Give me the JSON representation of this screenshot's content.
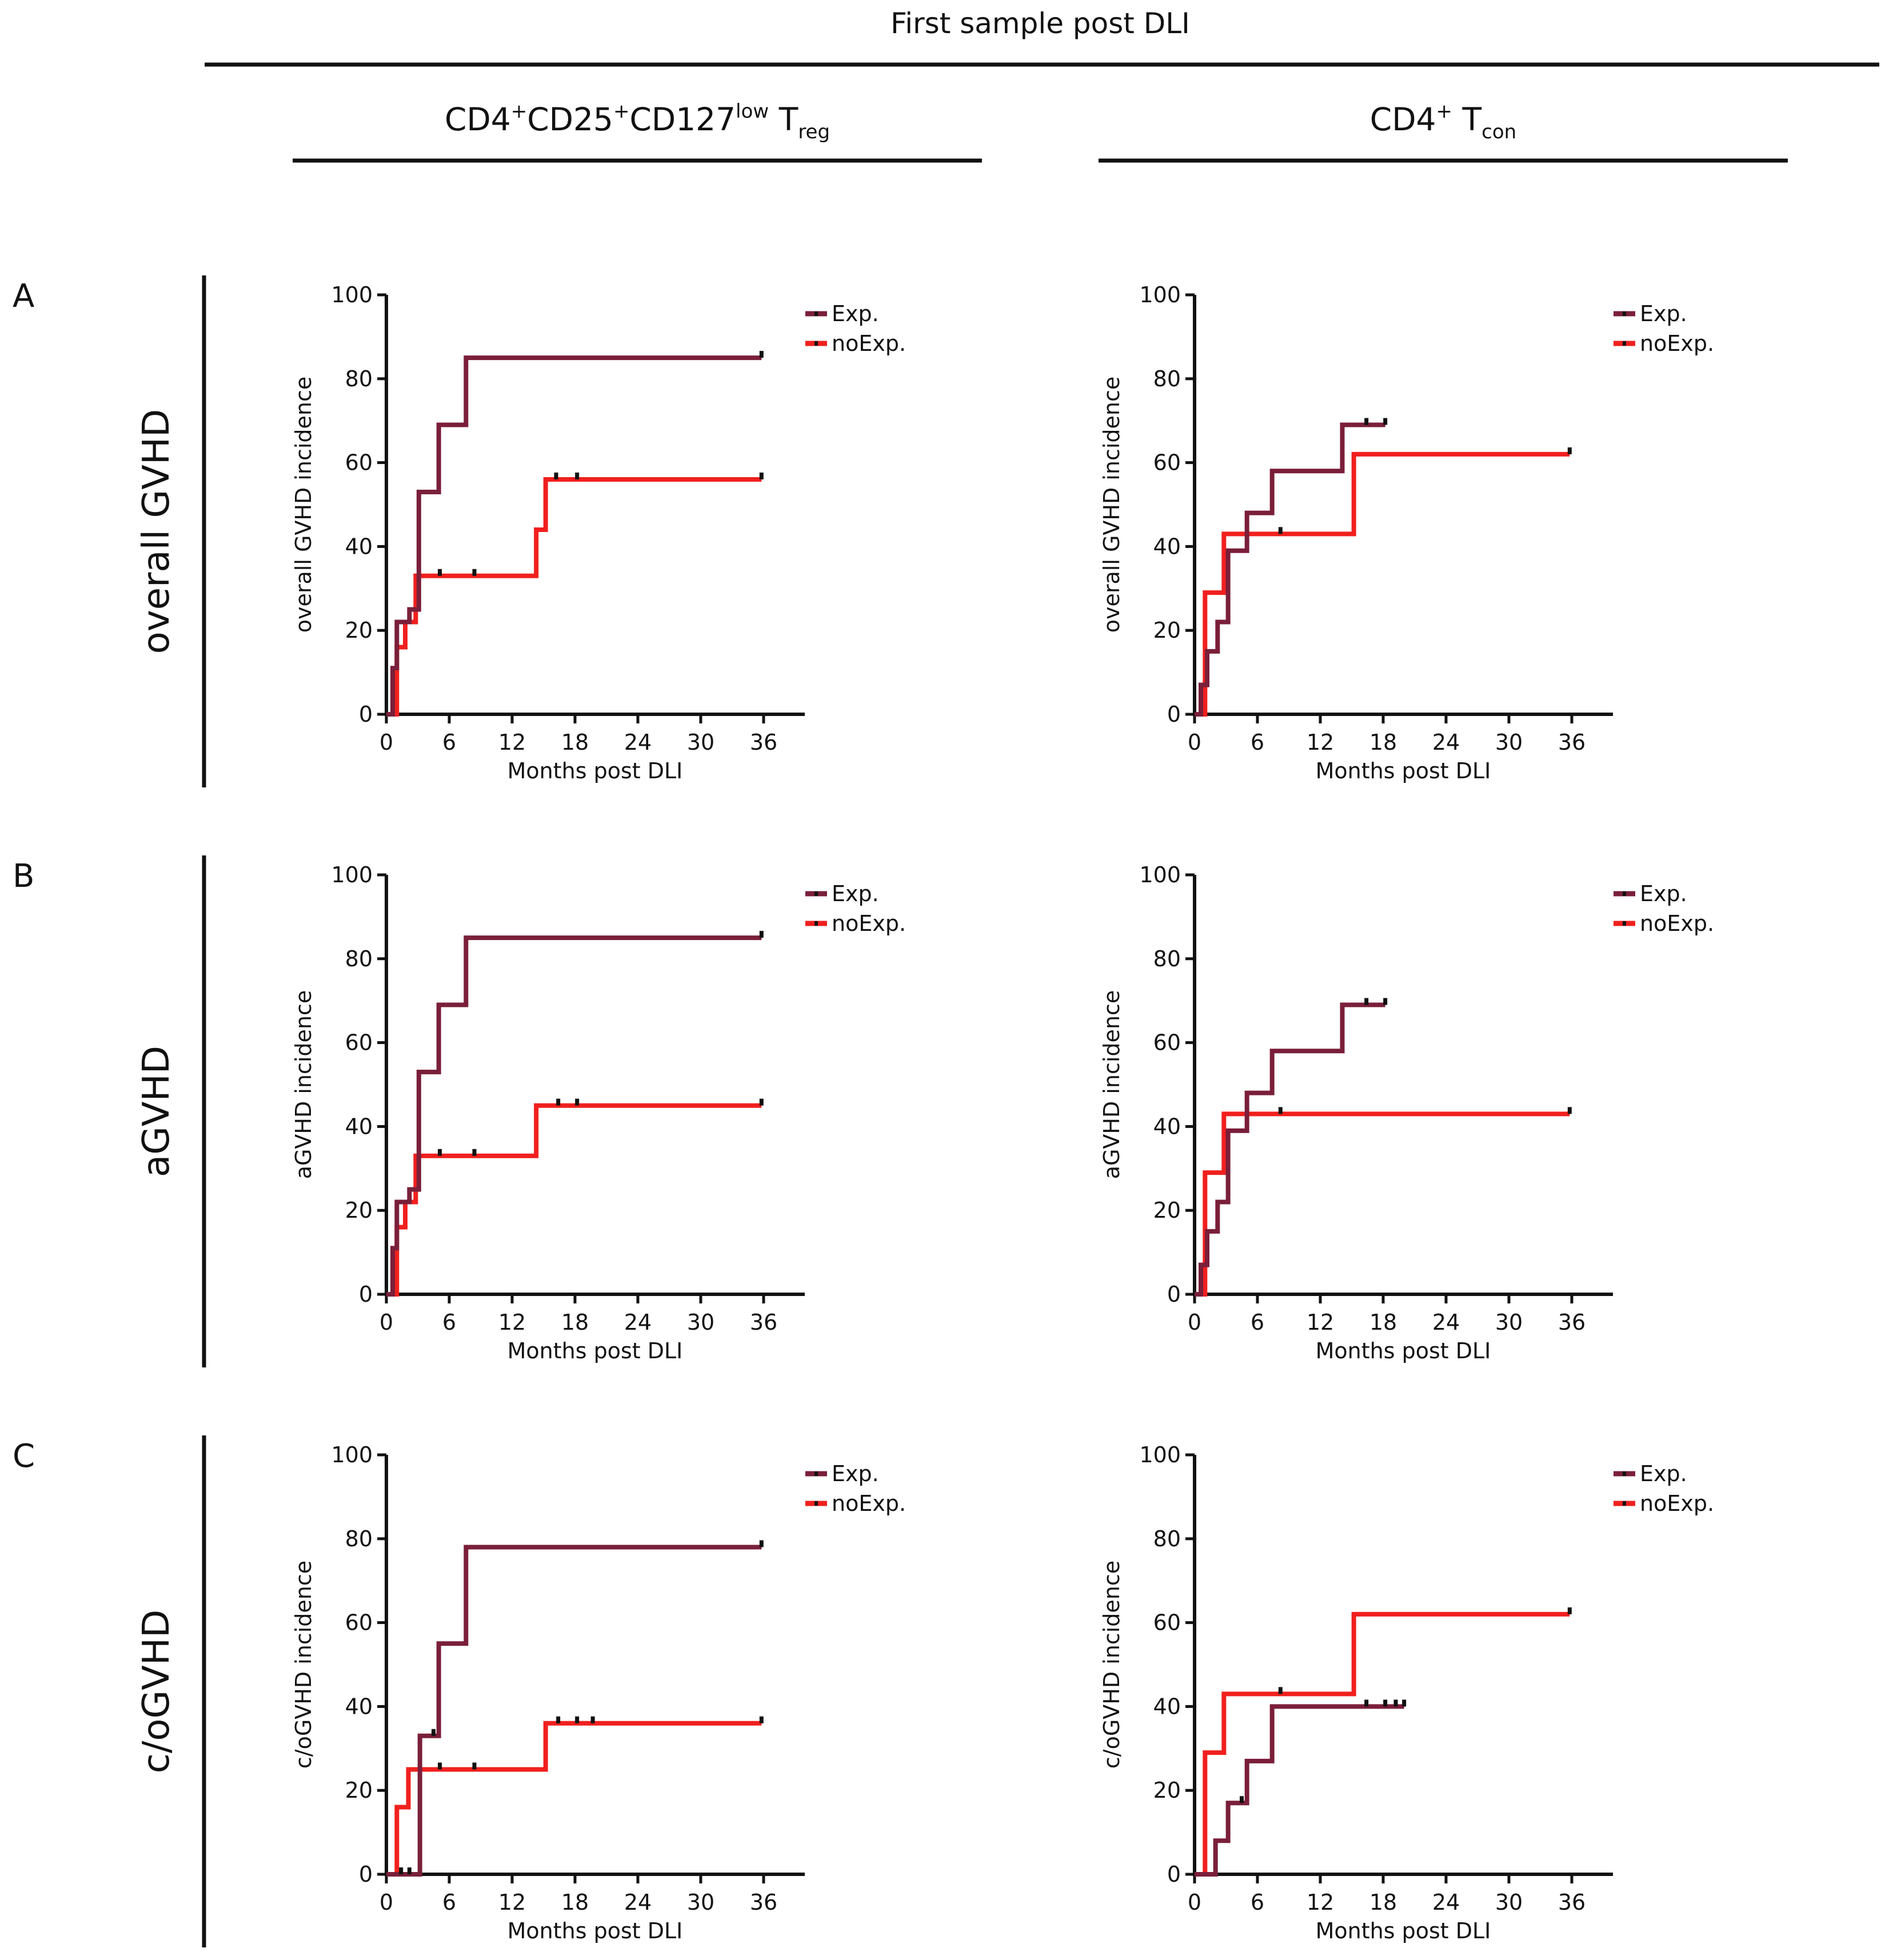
{
  "figure": {
    "header": "First sample post DLI",
    "columns": [
      {
        "main": "CD4",
        "parts": [
          {
            "t": "+",
            "k": "sup"
          },
          {
            "t": "CD25",
            "k": "n"
          },
          {
            "t": "+",
            "k": "sup"
          },
          {
            "t": "CD127",
            "k": "n"
          },
          {
            "t": "low",
            "k": "sup"
          },
          {
            "t": " T",
            "k": "n"
          },
          {
            "t": "reg",
            "k": "sub"
          }
        ]
      },
      {
        "main": "CD4",
        "parts": [
          {
            "t": "+",
            "k": "sup"
          },
          {
            "t": " T",
            "k": "n"
          },
          {
            "t": "con",
            "k": "sub"
          }
        ]
      }
    ],
    "rows": [
      {
        "letter": "A",
        "label": "overall GVHD"
      },
      {
        "letter": "B",
        "label": "aGVHD"
      },
      {
        "letter": "C",
        "label": "c/oGVHD"
      }
    ]
  },
  "colors": {
    "exp": "#7a1f3a",
    "noexp": "#f0201e",
    "axis": "#111111"
  },
  "chart_data": [
    {
      "type": "line",
      "step": true,
      "row": 0,
      "col": 0,
      "xlabel": "Months post DLI",
      "ylabel": "overall GVHD incidence",
      "xlim": [
        0,
        36
      ],
      "ylim": [
        0,
        100
      ],
      "xticks": [
        0,
        6,
        12,
        18,
        24,
        30,
        36
      ],
      "yticks": [
        0,
        20,
        40,
        60,
        80,
        100
      ],
      "legend": "top-right",
      "series": [
        {
          "name": "Exp.",
          "color": "#7a1f3a",
          "x": [
            0,
            0.6,
            1.0,
            2.2,
            3.1,
            5.0,
            7.6,
            35.8
          ],
          "y": [
            0,
            11,
            22,
            25,
            53,
            69,
            85,
            85
          ],
          "censored": [
            [
              35.8,
              85
            ]
          ]
        },
        {
          "name": "noExp.",
          "color": "#f0201e",
          "x": [
            0,
            1.0,
            1.8,
            2.8,
            14.3,
            15.2,
            35.8
          ],
          "y": [
            0,
            16,
            22,
            33,
            44,
            56,
            56
          ],
          "censored": [
            [
              5.1,
              33
            ],
            [
              8.4,
              33
            ],
            [
              16.2,
              56
            ],
            [
              18.2,
              56
            ],
            [
              35.8,
              56
            ]
          ]
        }
      ]
    },
    {
      "type": "line",
      "step": true,
      "row": 0,
      "col": 1,
      "xlabel": "Months post DLI",
      "ylabel": "overall GVHD incidence",
      "xlim": [
        0,
        36
      ],
      "ylim": [
        0,
        100
      ],
      "xticks": [
        0,
        6,
        12,
        18,
        24,
        30,
        36
      ],
      "yticks": [
        0,
        20,
        40,
        60,
        80,
        100
      ],
      "legend": "top-right",
      "series": [
        {
          "name": "Exp.",
          "color": "#7a1f3a",
          "x": [
            0,
            0.6,
            1.2,
            2.2,
            3.2,
            5.0,
            7.4,
            14.1,
            18.2
          ],
          "y": [
            0,
            7,
            15,
            22,
            39,
            48,
            58,
            69,
            69
          ],
          "censored": [
            [
              16.4,
              69
            ],
            [
              18.2,
              69
            ]
          ]
        },
        {
          "name": "noExp.",
          "color": "#f0201e",
          "x": [
            0,
            1.0,
            2.8,
            15.2,
            35.8
          ],
          "y": [
            0,
            29,
            43,
            62,
            62
          ],
          "censored": [
            [
              8.2,
              43
            ],
            [
              35.8,
              62
            ]
          ]
        }
      ]
    },
    {
      "type": "line",
      "step": true,
      "row": 1,
      "col": 0,
      "xlabel": "Months post DLI",
      "ylabel": "aGVHD incidence",
      "xlim": [
        0,
        36
      ],
      "ylim": [
        0,
        100
      ],
      "xticks": [
        0,
        6,
        12,
        18,
        24,
        30,
        36
      ],
      "yticks": [
        0,
        20,
        40,
        60,
        80,
        100
      ],
      "legend": "top-right",
      "series": [
        {
          "name": "Exp.",
          "color": "#7a1f3a",
          "x": [
            0,
            0.6,
            1.0,
            2.2,
            3.1,
            5.0,
            7.6,
            35.8
          ],
          "y": [
            0,
            11,
            22,
            25,
            53,
            69,
            85,
            85
          ],
          "censored": [
            [
              35.8,
              85
            ]
          ]
        },
        {
          "name": "noExp.",
          "color": "#f0201e",
          "x": [
            0,
            1.0,
            1.8,
            2.8,
            14.3,
            35.8
          ],
          "y": [
            0,
            16,
            22,
            33,
            45,
            45
          ],
          "censored": [
            [
              5.1,
              33
            ],
            [
              8.4,
              33
            ],
            [
              16.4,
              45
            ],
            [
              18.2,
              45
            ],
            [
              35.8,
              45
            ]
          ]
        }
      ]
    },
    {
      "type": "line",
      "step": true,
      "row": 1,
      "col": 1,
      "xlabel": "Months post DLI",
      "ylabel": "aGVHD incidence",
      "xlim": [
        0,
        36
      ],
      "ylim": [
        0,
        100
      ],
      "xticks": [
        0,
        6,
        12,
        18,
        24,
        30,
        36
      ],
      "yticks": [
        0,
        20,
        40,
        60,
        80,
        100
      ],
      "legend": "top-right",
      "series": [
        {
          "name": "Exp.",
          "color": "#7a1f3a",
          "x": [
            0,
            0.6,
            1.2,
            2.2,
            3.2,
            5.0,
            7.4,
            14.1,
            18.2
          ],
          "y": [
            0,
            7,
            15,
            22,
            39,
            48,
            58,
            69,
            69
          ],
          "censored": [
            [
              16.4,
              69
            ],
            [
              18.2,
              69
            ]
          ]
        },
        {
          "name": "noExp.",
          "color": "#f0201e",
          "x": [
            0,
            1.0,
            2.8,
            35.8
          ],
          "y": [
            0,
            29,
            43,
            43
          ],
          "censored": [
            [
              8.2,
              43
            ],
            [
              35.8,
              43
            ]
          ]
        }
      ]
    },
    {
      "type": "line",
      "step": true,
      "row": 2,
      "col": 0,
      "xlabel": "Months post DLI",
      "ylabel": "c/oGVHD incidence",
      "xlim": [
        0,
        36
      ],
      "ylim": [
        0,
        100
      ],
      "xticks": [
        0,
        6,
        12,
        18,
        24,
        30,
        36
      ],
      "yticks": [
        0,
        20,
        40,
        60,
        80,
        100
      ],
      "legend": "top-right",
      "series": [
        {
          "name": "Exp.",
          "color": "#7a1f3a",
          "x": [
            0,
            3.2,
            5.0,
            7.6,
            35.8
          ],
          "y": [
            0,
            33,
            55,
            78,
            78
          ],
          "censored": [
            [
              1.4,
              0
            ],
            [
              2.2,
              0
            ],
            [
              4.5,
              33
            ],
            [
              35.8,
              78
            ]
          ]
        },
        {
          "name": "noExp.",
          "color": "#f0201e",
          "x": [
            0,
            1.0,
            2.1,
            15.2,
            35.8
          ],
          "y": [
            0,
            16,
            25,
            36,
            36
          ],
          "censored": [
            [
              5.1,
              25
            ],
            [
              8.4,
              25
            ],
            [
              16.4,
              36
            ],
            [
              18.2,
              36
            ],
            [
              19.7,
              36
            ],
            [
              35.8,
              36
            ]
          ]
        }
      ]
    },
    {
      "type": "line",
      "step": true,
      "row": 2,
      "col": 1,
      "xlabel": "Months post DLI",
      "ylabel": "c/oGVHD incidence",
      "xlim": [
        0,
        36
      ],
      "ylim": [
        0,
        100
      ],
      "xticks": [
        0,
        6,
        12,
        18,
        24,
        30,
        36
      ],
      "yticks": [
        0,
        20,
        40,
        60,
        80,
        100
      ],
      "legend": "top-right",
      "series": [
        {
          "name": "Exp.",
          "color": "#7a1f3a",
          "x": [
            0,
            2.0,
            3.2,
            5.0,
            7.4,
            20.0
          ],
          "y": [
            0,
            8,
            17,
            27,
            40,
            40
          ],
          "censored": [
            [
              4.5,
              17
            ],
            [
              16.4,
              40
            ],
            [
              18.2,
              40
            ],
            [
              19.2,
              40
            ],
            [
              20.0,
              40
            ]
          ]
        },
        {
          "name": "noExp.",
          "color": "#f0201e",
          "x": [
            0,
            1.0,
            2.8,
            15.2,
            35.8
          ],
          "y": [
            0,
            29,
            43,
            62,
            62
          ],
          "censored": [
            [
              8.2,
              43
            ],
            [
              35.8,
              62
            ]
          ]
        }
      ]
    }
  ]
}
